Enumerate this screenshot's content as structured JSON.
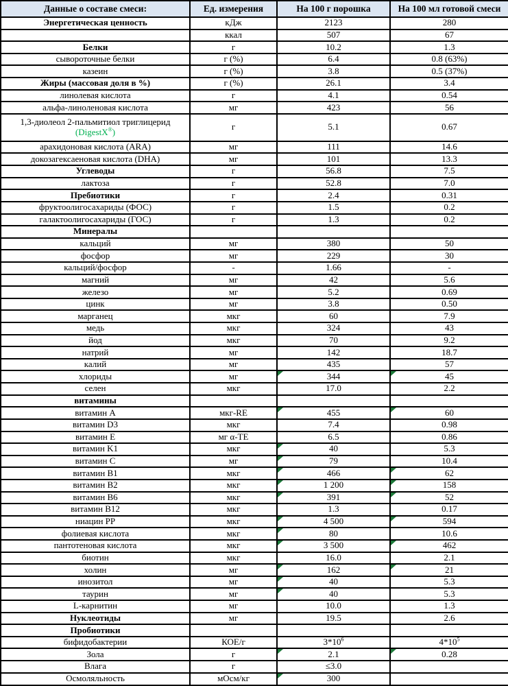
{
  "colors": {
    "header_bg": "#dbe5f1",
    "border": "#000000",
    "flag_green": "#1d7a3a",
    "digestx_green": "#00b050"
  },
  "table": {
    "headers": [
      {
        "label": "Данные о составе смеси:"
      },
      {
        "label": "Ед. измерения"
      },
      {
        "label": "На 100 г порошка"
      },
      {
        "label": "На 100 мл готовой смеси"
      }
    ],
    "rows": [
      {
        "name": "Энергетическая ценность",
        "bold": true,
        "unit": "кДж",
        "per100g": "2123",
        "per100ml": "280"
      },
      {
        "name": "",
        "unit": "ккал",
        "per100g": "507",
        "per100ml": "67"
      },
      {
        "name": "Белки",
        "bold": true,
        "unit": "г",
        "per100g": "10.2",
        "per100ml": "1.3"
      },
      {
        "name": "сывороточные белки",
        "unit": "г (%)",
        "per100g": "6.4",
        "per100ml": "0.8 (63%)"
      },
      {
        "name": "казеин",
        "unit": "г (%)",
        "per100g": "3.8",
        "per100ml": "0.5 (37%)"
      },
      {
        "name": "Жиры (массовая доля в %)",
        "bold": true,
        "unit": "г (%)",
        "per100g": "26.1",
        "per100ml": "3.4"
      },
      {
        "name": "линолевая кислота",
        "unit": "г",
        "per100g": "4.1",
        "per100ml": "0.54"
      },
      {
        "name": "альфа-линоленовая кислота",
        "unit": "мг",
        "per100g": "423",
        "per100ml": "56"
      },
      {
        "name": "1,3-диолеол 2-пальмитиол триглицерид",
        "name2": "(DigestX^{®})",
        "tall": true,
        "unit": "г",
        "per100g": "5.1",
        "per100ml": "0.67"
      },
      {
        "name": "арахидоновая кислота (ARA)",
        "unit": "мг",
        "per100g": "111",
        "per100ml": "14.6"
      },
      {
        "name": "докозагексаеновая кислота (DHA)",
        "unit": "мг",
        "per100g": "101",
        "per100ml": "13.3"
      },
      {
        "name": "Углеводы",
        "bold": true,
        "unit": "г",
        "per100g": "56.8",
        "per100ml": "7.5"
      },
      {
        "name": "лактоза",
        "unit": "г",
        "per100g": "52.8",
        "per100ml": "7.0"
      },
      {
        "name": "Пребиотики",
        "bold": true,
        "unit": "г",
        "per100g": "2.4",
        "per100ml": "0.31"
      },
      {
        "name": "фруктоолигосахариды (ФОС)",
        "unit": "г",
        "per100g": "1.5",
        "per100ml": "0.2"
      },
      {
        "name": "галактоолигосахариды (ГОС)",
        "unit": "г",
        "per100g": "1.3",
        "per100ml": "0.2"
      },
      {
        "name": "Минералы",
        "bold": true,
        "unit": "",
        "per100g": "",
        "per100ml": ""
      },
      {
        "name": "кальций",
        "unit": "мг",
        "per100g": "380",
        "per100ml": "50"
      },
      {
        "name": "фосфор",
        "unit": "мг",
        "per100g": "229",
        "per100ml": "30"
      },
      {
        "name": "кальций/фосфор",
        "unit": "-",
        "per100g": "1.66",
        "per100ml": "-"
      },
      {
        "name": "магний",
        "unit": "мг",
        "per100g": "42",
        "per100ml": "5.6"
      },
      {
        "name": "железо",
        "unit": "мг",
        "per100g": "5.2",
        "per100ml": "0.69"
      },
      {
        "name": "цинк",
        "unit": "мг",
        "per100g": "3.8",
        "per100ml": "0.50"
      },
      {
        "name": "марганец",
        "unit": "мкг",
        "per100g": "60",
        "per100ml": "7.9"
      },
      {
        "name": "медь",
        "unit": "мкг",
        "per100g": "324",
        "per100ml": "43"
      },
      {
        "name": "йод",
        "unit": "мкг",
        "per100g": "70",
        "per100ml": "9.2"
      },
      {
        "name": "натрий",
        "unit": "мг",
        "per100g": "142",
        "per100ml": "18.7"
      },
      {
        "name": "калий",
        "unit": "мг",
        "per100g": "435",
        "per100ml": "57"
      },
      {
        "name": "хлориды",
        "unit": "мг",
        "per100g": "344",
        "per100ml": "45",
        "flag_g": true,
        "flag_ml": true
      },
      {
        "name": "селен",
        "unit": "мкг",
        "per100g": "17.0",
        "per100ml": "2.2"
      },
      {
        "name": "витамины",
        "bold": true,
        "unit": "",
        "per100g": "",
        "per100ml": ""
      },
      {
        "name": "витамин A",
        "unit": "мкг-RE",
        "per100g": "455",
        "per100ml": "60",
        "flag_g": true,
        "flag_ml": true
      },
      {
        "name": "витамин D3",
        "unit": "мкг",
        "per100g": "7.4",
        "per100ml": "0.98"
      },
      {
        "name": "витамин E",
        "unit": "мг α-TE",
        "per100g": "6.5",
        "per100ml": "0.86"
      },
      {
        "name": "витамин K1",
        "unit": "мкг",
        "per100g": "40",
        "per100ml": "5.3",
        "flag_g": true
      },
      {
        "name": "витамин C",
        "unit": "мг",
        "per100g": "79",
        "per100ml": "10.4",
        "flag_g": true
      },
      {
        "name": "витамин B1",
        "unit": "мкг",
        "per100g": "466",
        "per100ml": "62",
        "flag_g": true,
        "flag_ml": true
      },
      {
        "name": "витамин B2",
        "unit": "мкг",
        "per100g": "1 200",
        "per100ml": "158",
        "flag_g": true,
        "flag_ml": true
      },
      {
        "name": "витамин B6",
        "unit": "мкг",
        "per100g": "391",
        "per100ml": "52",
        "flag_g": true,
        "flag_ml": true
      },
      {
        "name": "витамин B12",
        "unit": "мкг",
        "per100g": "1.3",
        "per100ml": "0.17"
      },
      {
        "name": "ниацин PP",
        "unit": "мкг",
        "per100g": "4 500",
        "per100ml": "594",
        "flag_g": true,
        "flag_ml": true
      },
      {
        "name": "фолиевая кислота",
        "unit": "мкг",
        "per100g": "80",
        "per100ml": "10.6",
        "flag_g": true
      },
      {
        "name": "пантотеновая кислота",
        "unit": "мкг",
        "per100g": "3 500",
        "per100ml": "462",
        "flag_g": true,
        "flag_ml": true
      },
      {
        "name": "биотин",
        "unit": "мкг",
        "per100g": "16.0",
        "per100ml": "2.1"
      },
      {
        "name": "холин",
        "unit": "мг",
        "per100g": "162",
        "per100ml": "21",
        "flag_g": true,
        "flag_ml": true
      },
      {
        "name": "инозитол",
        "unit": "мг",
        "per100g": "40",
        "per100ml": "5.3",
        "flag_g": true
      },
      {
        "name": "таурин",
        "unit": "мг",
        "per100g": "40",
        "per100ml": "5.3",
        "flag_g": true
      },
      {
        "name": "L-карнитин",
        "unit": "мг",
        "per100g": "10.0",
        "per100ml": "1.3"
      },
      {
        "name": "Нуклеотиды",
        "bold": true,
        "unit": "мг",
        "per100g": "19.5",
        "per100ml": "2.6"
      },
      {
        "name": "Пробиотики",
        "bold": true,
        "unit": "",
        "per100g": "",
        "per100ml": ""
      },
      {
        "name": "бифидобактерии",
        "unit": "КОЕ/г",
        "per100g": "3*10^{6}",
        "per100ml": "4*10^{5}"
      },
      {
        "name": "Зола",
        "unit": "г",
        "per100g": "2.1",
        "per100ml": "0.28",
        "flag_g": true,
        "flag_ml": true
      },
      {
        "name": "Влага",
        "unit": "г",
        "per100g": "≤3.0",
        "per100ml": ""
      },
      {
        "name": "Осмоляльность",
        "unit": "мОсм/кг",
        "per100g": "300",
        "per100ml": "",
        "flag_g": true
      }
    ]
  }
}
